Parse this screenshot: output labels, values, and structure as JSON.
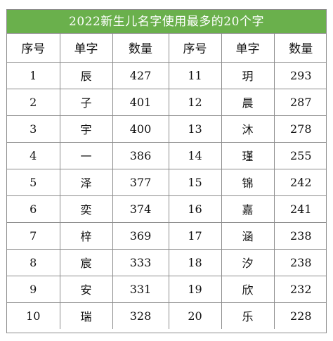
{
  "title": "2022新生儿名字使用最多的20个字",
  "headers": [
    "序号",
    "单字",
    "数量",
    "序号",
    "单字",
    "数量"
  ],
  "rows": [
    [
      "1",
      "辰",
      "427",
      "11",
      "玥",
      "293"
    ],
    [
      "2",
      "子",
      "401",
      "12",
      "晨",
      "287"
    ],
    [
      "3",
      "宇",
      "400",
      "13",
      "沐",
      "278"
    ],
    [
      "4",
      "一",
      "386",
      "14",
      "瑾",
      "255"
    ],
    [
      "5",
      "泽",
      "377",
      "15",
      "锦",
      "242"
    ],
    [
      "6",
      "奕",
      "374",
      "16",
      "嘉",
      "241"
    ],
    [
      "7",
      "梓",
      "369",
      "17",
      "涵",
      "238"
    ],
    [
      "8",
      "宸",
      "333",
      "18",
      "汐",
      "238"
    ],
    [
      "9",
      "安",
      "331",
      "19",
      "欣",
      "232"
    ],
    [
      "10",
      "瑞",
      "328",
      "20",
      "乐",
      "228"
    ]
  ],
  "colors": {
    "title_bg": "#6ab04c",
    "title_text": "#ffffff",
    "border": "#8c8c8c"
  }
}
